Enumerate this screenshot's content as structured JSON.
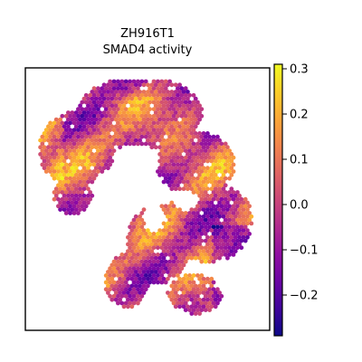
{
  "chart_data": {
    "type": "heatmap",
    "title_lines": [
      "ZH916T1",
      "SMAD4 activity"
    ],
    "colormap": "plasma",
    "colorbar": {
      "vmin": -0.29,
      "vmax": 0.31,
      "ticks": [
        {
          "value": 0.3,
          "label": "0.3"
        },
        {
          "value": 0.2,
          "label": "0.2"
        },
        {
          "value": 0.1,
          "label": "0.1"
        },
        {
          "value": 0.0,
          "label": "0.0"
        },
        {
          "value": -0.1,
          "label": "−0.1"
        },
        {
          "value": -0.2,
          "label": "−0.2"
        }
      ]
    },
    "axes": {
      "xticks": [],
      "yticks": [],
      "grid": false
    },
    "spots_note": "spatial transcriptomics spots colored by activity score"
  }
}
